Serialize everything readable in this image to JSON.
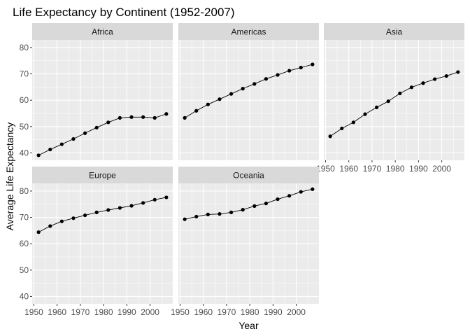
{
  "chart_data": {
    "type": "line",
    "title": "Life Expectancy by Continent (1952-2007)",
    "xlabel": "Year",
    "ylabel": "Average Life Expectancy",
    "x": [
      1952,
      1957,
      1962,
      1967,
      1972,
      1977,
      1982,
      1987,
      1992,
      1997,
      2002,
      2007
    ],
    "xticks": [
      1950,
      1960,
      1970,
      1980,
      1990,
      2000
    ],
    "yticks": [
      40,
      50,
      60,
      70,
      80
    ],
    "xlim": [
      1949.25,
      2009.75
    ],
    "ylim": [
      37.2,
      82.9
    ],
    "facets": "wrap 3 columns, shared axes",
    "grid": true,
    "colors": {
      "panel": "#ebebeb",
      "strip": "#d9d9d9",
      "grid_major": "#ffffff",
      "line": "#000000",
      "point": "#000000"
    },
    "series": [
      {
        "name": "Africa",
        "values": [
          39.1,
          41.3,
          43.3,
          45.3,
          47.5,
          49.6,
          51.6,
          53.3,
          53.6,
          53.6,
          53.3,
          54.8
        ]
      },
      {
        "name": "Americas",
        "values": [
          53.3,
          56.0,
          58.4,
          60.4,
          62.4,
          64.4,
          66.2,
          68.1,
          69.6,
          71.2,
          72.4,
          73.6
        ]
      },
      {
        "name": "Asia",
        "values": [
          46.3,
          49.3,
          51.6,
          54.7,
          57.3,
          59.6,
          62.6,
          64.9,
          66.5,
          68.0,
          69.2,
          70.7
        ]
      },
      {
        "name": "Europe",
        "values": [
          64.4,
          66.7,
          68.5,
          69.7,
          70.8,
          71.9,
          72.8,
          73.6,
          74.4,
          75.5,
          76.7,
          77.6
        ]
      },
      {
        "name": "Oceania",
        "values": [
          69.3,
          70.3,
          71.1,
          71.3,
          71.9,
          72.9,
          74.3,
          75.3,
          76.9,
          78.2,
          79.7,
          80.7
        ]
      }
    ]
  }
}
